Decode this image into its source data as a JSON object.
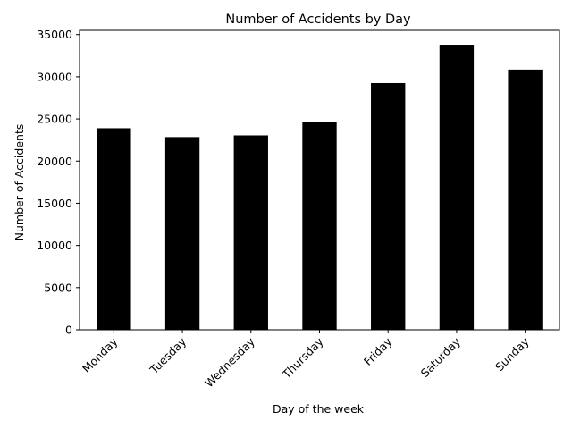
{
  "chart_data": {
    "type": "bar",
    "title": "Number of Accidents by Day",
    "xlabel": "Day of the week",
    "ylabel": "Number of Accidents",
    "categories": [
      "Monday",
      "Tuesday",
      "Wednesday",
      "Thursday",
      "Friday",
      "Saturday",
      "Sunday"
    ],
    "values": [
      23900,
      22850,
      23050,
      24650,
      29250,
      33800,
      30850
    ],
    "ylim": [
      0,
      35500
    ],
    "yticks": [
      0,
      5000,
      10000,
      15000,
      20000,
      25000,
      30000,
      35000
    ],
    "bar_color": "#000000",
    "grid": false,
    "legend": "none"
  }
}
